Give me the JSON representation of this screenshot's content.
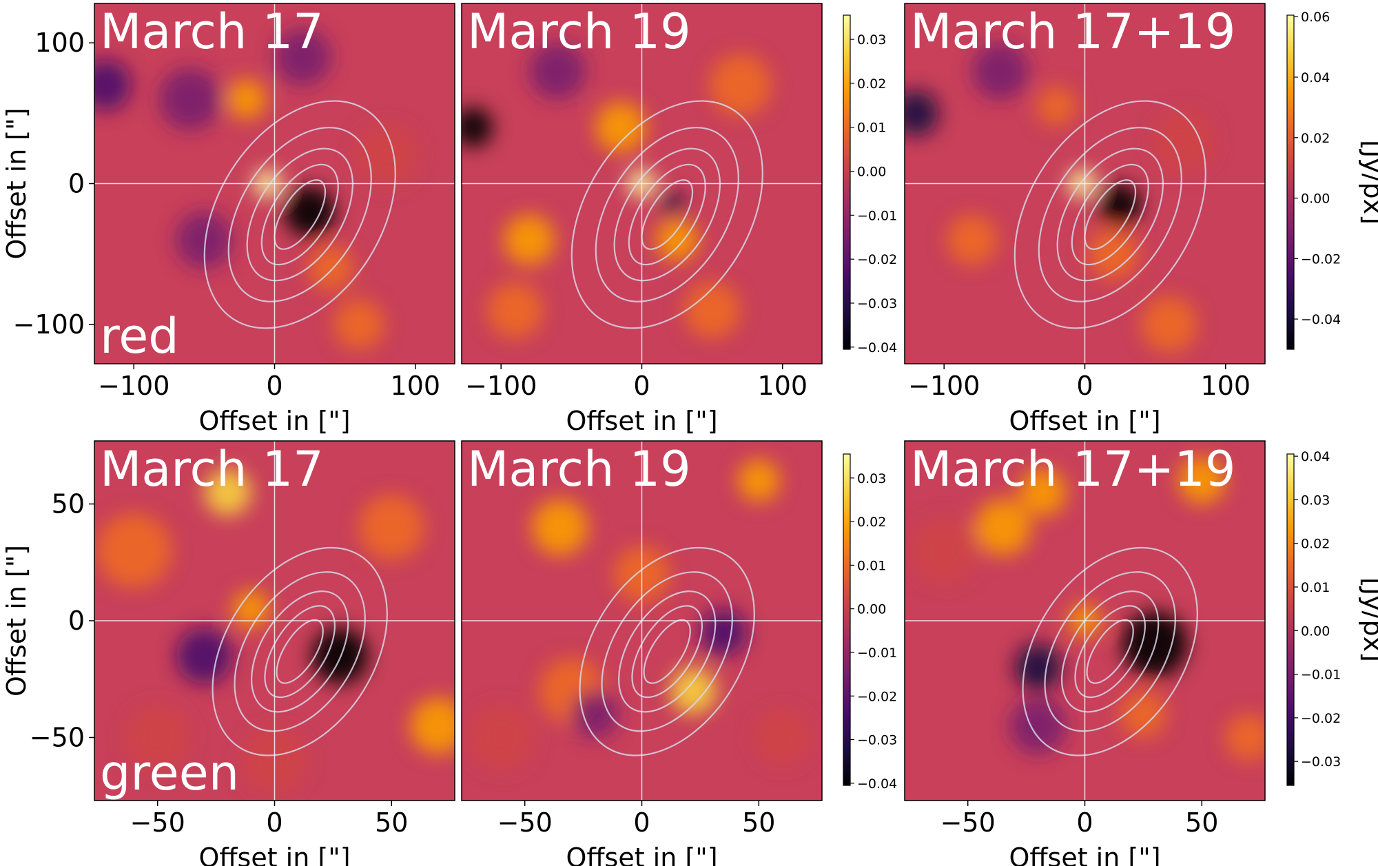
{
  "colormap": [
    "#000004",
    "#1b0c41",
    "#4a0c6b",
    "#781c6d",
    "#a52c60",
    "#cf4446",
    "#ed6925",
    "#fb9b06",
    "#f7d13d",
    "#fcffa4"
  ],
  "overlay_color": "#d8d8e8",
  "chart_data": [
    {
      "type": "heatmap",
      "row": "red",
      "row_label": "red",
      "axis_label": "Offset in [\"]",
      "axis_range": [
        -128,
        128
      ],
      "ticks": [
        -100,
        0,
        100
      ],
      "tick_labels": [
        "−100",
        "0",
        "100"
      ],
      "panels": [
        {
          "title": "March 17",
          "blobs": [
            [
              -5,
              0,
              10,
              0.9
            ],
            [
              25,
              -20,
              18,
              -1.0
            ],
            [
              -20,
              60,
              14,
              0.6
            ],
            [
              -120,
              70,
              18,
              -0.6
            ],
            [
              -60,
              60,
              22,
              -0.3
            ],
            [
              40,
              -60,
              16,
              0.3
            ],
            [
              80,
              20,
              22,
              0.2
            ],
            [
              -50,
              -40,
              20,
              -0.3
            ],
            [
              20,
              90,
              20,
              -0.3
            ],
            [
              60,
              -100,
              18,
              0.3
            ]
          ]
        },
        {
          "title": "March 19",
          "blobs": [
            [
              0,
              0,
              10,
              0.9
            ],
            [
              -15,
              40,
              18,
              0.6
            ],
            [
              25,
              -40,
              15,
              0.5
            ],
            [
              -80,
              -40,
              18,
              0.6
            ],
            [
              22,
              -15,
              8,
              -0.8
            ],
            [
              -120,
              40,
              14,
              -1.0
            ],
            [
              70,
              70,
              22,
              0.3
            ],
            [
              -60,
              80,
              20,
              -0.3
            ],
            [
              50,
              -90,
              20,
              0.3
            ],
            [
              -90,
              -90,
              20,
              0.35
            ]
          ]
        },
        {
          "title": "March 17+19",
          "blobs": [
            [
              -2,
              0,
              10,
              0.9
            ],
            [
              25,
              -15,
              15,
              -1.0
            ],
            [
              -120,
              50,
              16,
              -0.7
            ],
            [
              -20,
              55,
              14,
              0.35
            ],
            [
              20,
              -50,
              18,
              0.35
            ],
            [
              -80,
              -40,
              18,
              0.3
            ],
            [
              -60,
              80,
              20,
              -0.4
            ],
            [
              70,
              30,
              22,
              0.2
            ],
            [
              60,
              -100,
              20,
              0.25
            ]
          ]
        }
      ],
      "colorbars": [
        {
          "ticks": [
            0.03,
            0.02,
            0.01,
            0.0,
            -0.01,
            -0.02,
            -0.03,
            -0.04
          ],
          "tick_labels": [
            "0.03",
            "0.02",
            "0.01",
            "0.00",
            "−0.01",
            "−0.02",
            "−0.03",
            "−0.04"
          ],
          "vmin": -0.0405,
          "vmax": 0.0355,
          "label": ""
        },
        {
          "ticks": [
            0.06,
            0.04,
            0.02,
            0.0,
            -0.02,
            -0.04
          ],
          "tick_labels": [
            "0.06",
            "0.04",
            "0.02",
            "0.00",
            "−0.02",
            "−0.04"
          ],
          "vmin": -0.05,
          "vmax": 0.0605,
          "label": "[Jy/px]"
        }
      ]
    },
    {
      "type": "heatmap",
      "row": "green",
      "row_label": "green",
      "axis_label": "Offset in [\"]",
      "axis_range": [
        -77,
        77
      ],
      "ticks": [
        -50,
        0,
        50
      ],
      "tick_labels": [
        "−50",
        "0",
        "50"
      ],
      "panels": [
        {
          "title": "March 17",
          "blobs": [
            [
              -20,
              55,
              10,
              0.7
            ],
            [
              28,
              -15,
              12,
              -1.0
            ],
            [
              -10,
              5,
              8,
              0.45
            ],
            [
              -30,
              -15,
              12,
              -0.45
            ],
            [
              70,
              -45,
              12,
              0.5
            ],
            [
              -60,
              30,
              16,
              0.25
            ],
            [
              50,
              40,
              14,
              0.25
            ],
            [
              0,
              -60,
              14,
              0.2
            ],
            [
              -50,
              -50,
              14,
              0.15
            ]
          ]
        },
        {
          "title": "March 19",
          "blobs": [
            [
              22,
              -30,
              10,
              0.8
            ],
            [
              -35,
              40,
              12,
              0.45
            ],
            [
              50,
              60,
              9,
              0.6
            ],
            [
              35,
              -5,
              10,
              -0.45
            ],
            [
              -30,
              -30,
              14,
              0.25
            ],
            [
              -20,
              -40,
              10,
              -0.3
            ],
            [
              0,
              20,
              12,
              0.3
            ],
            [
              60,
              -50,
              12,
              0.2
            ],
            [
              -60,
              -50,
              14,
              0.15
            ]
          ]
        },
        {
          "title": "March 17+19",
          "blobs": [
            [
              -18,
              55,
              10,
              0.6
            ],
            [
              -35,
              40,
              12,
              0.5
            ],
            [
              30,
              -10,
              14,
              -1.0
            ],
            [
              -20,
              -20,
              10,
              -0.7
            ],
            [
              -20,
              -45,
              12,
              -0.4
            ],
            [
              0,
              0,
              7,
              0.5
            ],
            [
              50,
              60,
              10,
              0.5
            ],
            [
              70,
              -50,
              10,
              0.3
            ],
            [
              -60,
              30,
              14,
              0.2
            ],
            [
              25,
              -40,
              10,
              0.3
            ]
          ]
        }
      ],
      "colorbars": [
        {
          "ticks": [
            0.03,
            0.02,
            0.01,
            0.0,
            -0.01,
            -0.02,
            -0.03,
            -0.04
          ],
          "tick_labels": [
            "0.03",
            "0.02",
            "0.01",
            "0.00",
            "−0.01",
            "−0.02",
            "−0.03",
            "−0.04"
          ],
          "vmin": -0.0405,
          "vmax": 0.0355,
          "label": ""
        },
        {
          "ticks": [
            0.04,
            0.03,
            0.02,
            0.01,
            0.0,
            -0.01,
            -0.02,
            -0.03
          ],
          "tick_labels": [
            "0.04",
            "0.03",
            "0.02",
            "0.01",
            "0.00",
            "−0.01",
            "−0.02",
            "−0.03"
          ],
          "vmin": -0.0355,
          "vmax": 0.0405,
          "label": "[Jy/px]"
        }
      ]
    }
  ]
}
